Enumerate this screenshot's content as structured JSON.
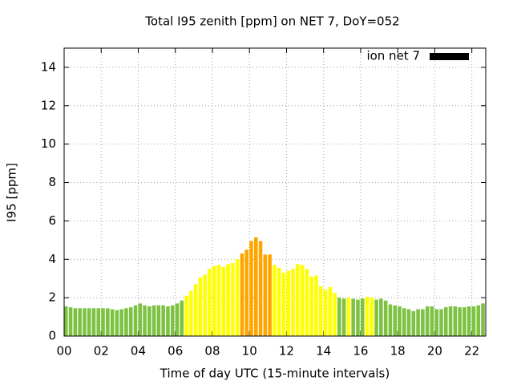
{
  "chart_data": {
    "type": "bar",
    "title": "Total I95 zenith [ppm] on NET 7, DoY=052",
    "x_label": "Time of day UTC (15-minute intervals)",
    "y_label": "I95 [ppm]",
    "x": [
      0,
      0.25,
      0.5,
      0.75,
      1,
      1.25,
      1.5,
      1.75,
      2,
      2.25,
      2.5,
      2.75,
      3,
      3.25,
      3.5,
      3.75,
      4,
      4.25,
      4.5,
      4.75,
      5,
      5.25,
      5.5,
      5.75,
      6,
      6.25,
      6.5,
      6.75,
      7,
      7.25,
      7.5,
      7.75,
      8,
      8.25,
      8.5,
      8.75,
      9,
      9.25,
      9.5,
      9.75,
      10,
      10.25,
      10.5,
      10.75,
      11,
      11.25,
      11.5,
      11.75,
      12,
      12.25,
      12.5,
      12.75,
      13,
      13.25,
      13.5,
      13.75,
      14,
      14.25,
      14.5,
      14.75,
      15,
      15.25,
      15.5,
      15.75,
      16,
      16.25,
      16.5,
      16.75,
      17,
      17.25,
      17.5,
      17.75,
      18,
      18.25,
      18.5,
      18.75,
      19,
      19.25,
      19.5,
      19.75,
      20,
      20.25,
      20.5,
      20.75,
      21,
      21.25,
      21.5,
      21.75,
      22,
      22.25,
      22.5
    ],
    "series": [
      {
        "name": "ion net 7",
        "color": "#000000",
        "values": [
          1.55,
          1.5,
          1.45,
          1.45,
          1.45,
          1.45,
          1.45,
          1.45,
          1.45,
          1.45,
          1.4,
          1.35,
          1.4,
          1.45,
          1.5,
          1.6,
          1.7,
          1.6,
          1.55,
          1.6,
          1.6,
          1.6,
          1.55,
          1.6,
          1.7,
          1.85,
          2.1,
          2.35,
          2.7,
          3.05,
          3.2,
          3.5,
          3.65,
          3.7,
          3.6,
          3.75,
          3.8,
          4.0,
          4.3,
          4.5,
          4.95,
          5.15,
          4.95,
          4.25,
          4.25,
          3.7,
          3.55,
          3.3,
          3.4,
          3.5,
          3.75,
          3.7,
          3.5,
          3.1,
          3.15,
          2.6,
          2.4,
          2.55,
          2.25,
          2.0,
          1.95,
          2.0,
          1.95,
          1.9,
          1.95,
          2.05,
          2.0,
          1.9,
          1.95,
          1.85,
          1.65,
          1.6,
          1.55,
          1.45,
          1.4,
          1.3,
          1.4,
          1.4,
          1.55,
          1.55,
          1.4,
          1.4,
          1.5,
          1.55,
          1.55,
          1.5,
          1.5,
          1.55,
          1.55,
          1.6,
          1.7
        ],
        "bar_colors": [
          "#7dc242",
          "#7dc242",
          "#7dc242",
          "#7dc242",
          "#7dc242",
          "#7dc242",
          "#7dc242",
          "#7dc242",
          "#7dc242",
          "#7dc242",
          "#7dc242",
          "#7dc242",
          "#7dc242",
          "#7dc242",
          "#7dc242",
          "#7dc242",
          "#7dc242",
          "#7dc242",
          "#7dc242",
          "#7dc242",
          "#7dc242",
          "#7dc242",
          "#7dc242",
          "#7dc242",
          "#7dc242",
          "#7dc242",
          "#ffff00",
          "#ffff00",
          "#ffff00",
          "#ffff00",
          "#ffff00",
          "#ffff00",
          "#ffff00",
          "#ffff00",
          "#ffff00",
          "#ffff00",
          "#ffff00",
          "#ffff00",
          "#ffa500",
          "#ffa500",
          "#ffa500",
          "#ffa500",
          "#ffa500",
          "#ffa500",
          "#ffa500",
          "#ffff00",
          "#ffff00",
          "#ffff00",
          "#ffff00",
          "#ffff00",
          "#ffff00",
          "#ffff00",
          "#ffff00",
          "#ffff00",
          "#ffff00",
          "#ffff00",
          "#ffff00",
          "#ffff00",
          "#ffff00",
          "#7dc242",
          "#7dc242",
          "#ffff00",
          "#7dc242",
          "#7dc242",
          "#7dc242",
          "#ffff00",
          "#ffff00",
          "#7dc242",
          "#7dc242",
          "#7dc242",
          "#7dc242",
          "#7dc242",
          "#7dc242",
          "#7dc242",
          "#7dc242",
          "#7dc242",
          "#7dc242",
          "#7dc242",
          "#7dc242",
          "#7dc242",
          "#7dc242",
          "#7dc242",
          "#7dc242",
          "#7dc242",
          "#7dc242",
          "#7dc242",
          "#7dc242",
          "#7dc242",
          "#7dc242",
          "#7dc242",
          "#7dc242"
        ]
      }
    ],
    "bar_width": 0.25,
    "xlim": [
      0,
      22.75
    ],
    "xticks": [
      {
        "value": 0,
        "label": "00"
      },
      {
        "value": 2,
        "label": "02"
      },
      {
        "value": 4,
        "label": "04"
      },
      {
        "value": 6,
        "label": "06"
      },
      {
        "value": 8,
        "label": "08"
      },
      {
        "value": 10,
        "label": "10"
      },
      {
        "value": 12,
        "label": "12"
      },
      {
        "value": 14,
        "label": "14"
      },
      {
        "value": 16,
        "label": "16"
      },
      {
        "value": 18,
        "label": "18"
      },
      {
        "value": 20,
        "label": "20"
      },
      {
        "value": 22,
        "label": "22"
      }
    ],
    "ylim": [
      0,
      15
    ],
    "yticks": [
      0,
      2,
      4,
      6,
      8,
      10,
      12,
      14
    ],
    "grid": true,
    "legend": "top-right"
  }
}
